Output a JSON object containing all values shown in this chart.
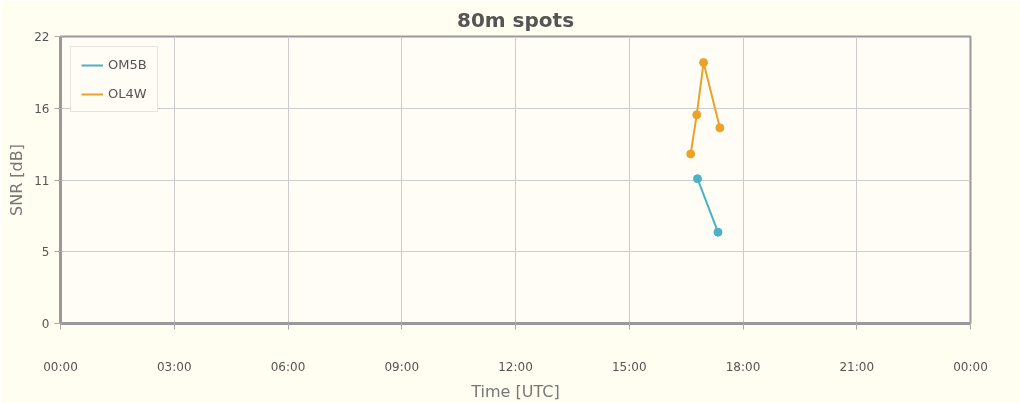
{
  "chart_data": {
    "type": "line",
    "title": "80m spots",
    "xlabel": "Time [UTC]",
    "ylabel": "SNR [dB]",
    "series": [
      {
        "name": "OM5B",
        "color": "#4bb2c5",
        "x": [
          16.8,
          17.34
        ],
        "values": [
          11.1,
          7.0
        ]
      },
      {
        "name": "OL4W",
        "color": "#eaa228",
        "x": [
          16.62,
          16.78,
          16.96,
          17.39
        ],
        "values": [
          13.0,
          16.0,
          20.0,
          15.0
        ]
      }
    ],
    "xlim": [
      0,
      24
    ],
    "xticks": [
      {
        "value": 0,
        "label": "00:00"
      },
      {
        "value": 3,
        "label": "03:00"
      },
      {
        "value": 6,
        "label": "06:00"
      },
      {
        "value": 9,
        "label": "09:00"
      },
      {
        "value": 12,
        "label": "12:00"
      },
      {
        "value": 15,
        "label": "15:00"
      },
      {
        "value": 18,
        "label": "18:00"
      },
      {
        "value": 21,
        "label": "21:00"
      },
      {
        "value": 24,
        "label": "00:00"
      }
    ],
    "ylim": [
      0,
      22
    ],
    "yticks": [
      0,
      {
        "value": 5.5,
        "label": "5"
      },
      11,
      {
        "value": 16.5,
        "label": "16"
      },
      22
    ],
    "grid": true,
    "legend": "top left",
    "marker": "circle",
    "line_style": "solid"
  }
}
